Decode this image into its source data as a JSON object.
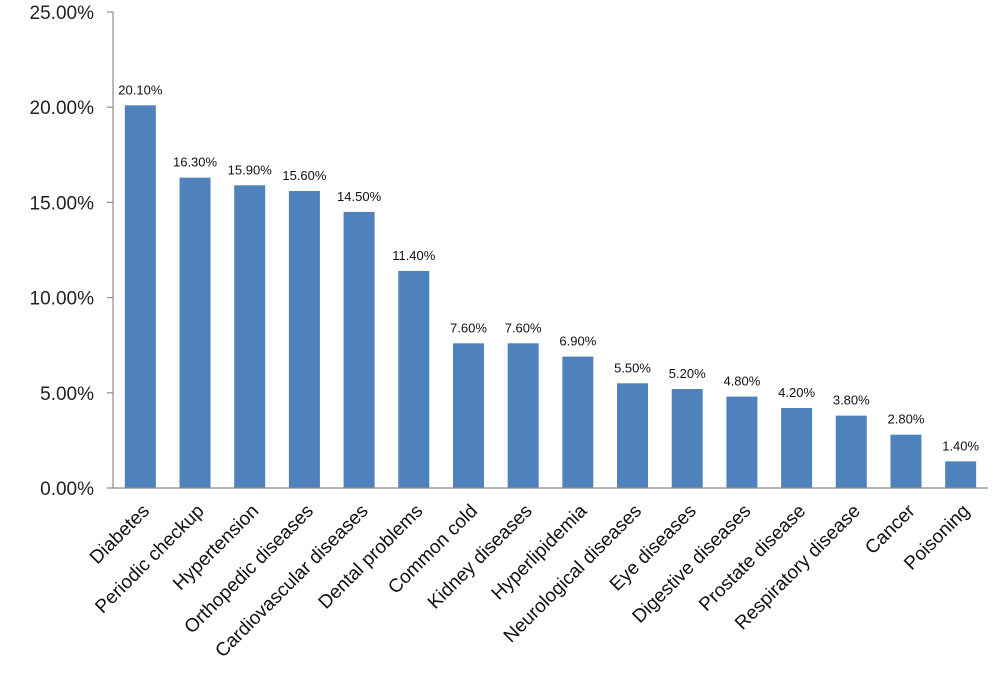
{
  "chart_data": {
    "type": "bar",
    "title": "",
    "xlabel": "",
    "ylabel": "",
    "ylim": [
      0,
      25
    ],
    "yticks": [
      "0.00%",
      "5.00%",
      "10.00%",
      "15.00%",
      "20.00%",
      "25.00%"
    ],
    "grid": false,
    "bar_color": "#4F81BD",
    "categories": [
      "Diabetes",
      "Periodic checkup",
      "Hypertension",
      "Orthopedic diseases",
      "Cardiovascular diseases",
      "Dental problems",
      "Common cold",
      "Kidney diseases",
      "Hyperlipidemia",
      "Neurological diseases",
      "Eye diseases",
      "Digestive diseases",
      "Prostate disease",
      "Respiratory disease",
      "Cancer",
      "Poisoning"
    ],
    "values": [
      20.1,
      16.3,
      15.9,
      15.6,
      14.5,
      11.4,
      7.6,
      7.6,
      6.9,
      5.5,
      5.2,
      4.8,
      4.2,
      3.8,
      2.8,
      1.4
    ],
    "data_labels": [
      "20.10%",
      "16.30%",
      "15.90%",
      "15.60%",
      "14.50%",
      "11.40%",
      "7.60%",
      "7.60%",
      "6.90%",
      "5.50%",
      "5.20%",
      "4.80%",
      "4.20%",
      "3.80%",
      "2.80%",
      "1.40%"
    ]
  }
}
